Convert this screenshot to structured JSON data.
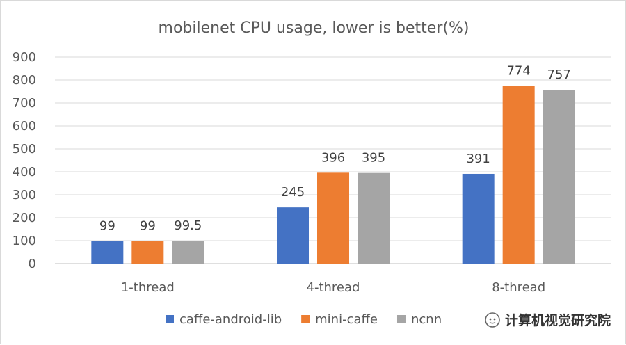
{
  "chart_data": {
    "type": "bar",
    "title": "mobilenet CPU usage, lower is better(%)",
    "categories": [
      "1-thread",
      "4-thread",
      "8-thread"
    ],
    "series": [
      {
        "name": "caffe-android-lib",
        "color": "#4472c4",
        "values": [
          99,
          245,
          391
        ],
        "labels": [
          "99",
          "245",
          "391"
        ]
      },
      {
        "name": "mini-caffe",
        "color": "#ed7d31",
        "values": [
          99,
          396,
          774
        ],
        "labels": [
          "99",
          "396",
          "774"
        ]
      },
      {
        "name": "ncnn",
        "color": "#a5a5a5",
        "values": [
          99.5,
          395,
          757
        ],
        "labels": [
          "99.5",
          "395",
          "757"
        ]
      }
    ],
    "ylim": [
      0,
      900
    ],
    "yticks": [
      0,
      100,
      200,
      300,
      400,
      500,
      600,
      700,
      800,
      900
    ],
    "grid": true,
    "legend": "bottom",
    "xlabel": "",
    "ylabel": ""
  },
  "watermark": {
    "text": "计算机视觉研究院",
    "icon": "wechat-icon"
  }
}
